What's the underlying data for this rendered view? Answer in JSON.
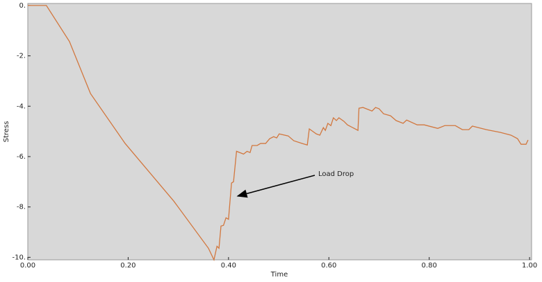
{
  "chart_data": {
    "type": "line",
    "xlabel": "Time",
    "ylabel": "Stress",
    "annotation": "Load Drop",
    "xlim": [
      0,
      1.004
    ],
    "ylim": [
      -10.1,
      0.08
    ],
    "xticks": [
      {
        "value": 0,
        "label": "0.00"
      },
      {
        "value": 0.2,
        "label": "0.20"
      },
      {
        "value": 0.4,
        "label": "0.40"
      },
      {
        "value": 0.6,
        "label": "0.60"
      },
      {
        "value": 0.8,
        "label": "0.80"
      },
      {
        "value": 1,
        "label": "1.00"
      }
    ],
    "yticks": [
      {
        "value": 0,
        "label": "0."
      },
      {
        "value": -2,
        "label": "-2."
      },
      {
        "value": -4,
        "label": "-4."
      },
      {
        "value": -6,
        "label": "-6."
      },
      {
        "value": -8,
        "label": "-8."
      },
      {
        "value": -10,
        "label": "-10."
      }
    ],
    "background": "#d8d8d8",
    "series": [
      {
        "color": "#d2773e",
        "x": [
          0,
          0.037,
          0.083,
          0.125,
          0.194,
          0.291,
          0.36,
          0.371,
          0.377,
          0.381,
          0.385,
          0.39,
          0.395,
          0.4,
          0.406,
          0.41,
          0.416,
          0.43,
          0.437,
          0.443,
          0.447,
          0.457,
          0.464,
          0.474,
          0.482,
          0.49,
          0.496,
          0.501,
          0.519,
          0.53,
          0.547,
          0.557,
          0.561,
          0.575,
          0.582,
          0.589,
          0.593,
          0.598,
          0.604,
          0.609,
          0.615,
          0.62,
          0.63,
          0.637,
          0.658,
          0.66,
          0.668,
          0.686,
          0.693,
          0.7,
          0.709,
          0.723,
          0.734,
          0.748,
          0.755,
          0.776,
          0.79,
          0.817,
          0.831,
          0.852,
          0.866,
          0.879,
          0.886,
          0.914,
          0.942,
          0.963,
          0.976,
          0.983,
          0.993,
          0.997
        ],
        "values": [
          0,
          0,
          -1.43,
          -3.5,
          -5.48,
          -7.77,
          -9.64,
          -10.1,
          -9.56,
          -9.64,
          -8.76,
          -8.73,
          -8.43,
          -8.49,
          -7.05,
          -7.0,
          -5.79,
          -5.9,
          -5.79,
          -5.84,
          -5.56,
          -5.56,
          -5.48,
          -5.48,
          -5.29,
          -5.21,
          -5.26,
          -5.1,
          -5.18,
          -5.37,
          -5.48,
          -5.54,
          -4.9,
          -5.1,
          -5.15,
          -4.85,
          -4.96,
          -4.68,
          -4.77,
          -4.46,
          -4.57,
          -4.46,
          -4.6,
          -4.74,
          -4.96,
          -4.08,
          -4.05,
          -4.19,
          -4.05,
          -4.1,
          -4.3,
          -4.38,
          -4.57,
          -4.68,
          -4.55,
          -4.74,
          -4.74,
          -4.88,
          -4.77,
          -4.77,
          -4.93,
          -4.93,
          -4.79,
          -4.93,
          -5.04,
          -5.15,
          -5.29,
          -5.51,
          -5.51,
          -5.34
        ]
      }
    ]
  }
}
